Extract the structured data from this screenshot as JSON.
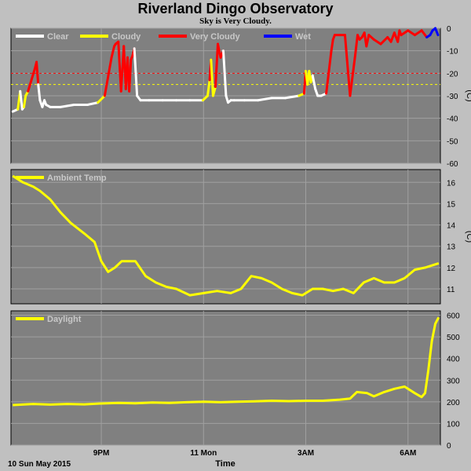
{
  "title": "Riverland Dingo Observatory",
  "subtitle": "Sky is Very Cloudy.",
  "colors": {
    "clear": "#ffffff",
    "cloudy": "#ffff00",
    "very_cloudy": "#ff0000",
    "wet": "#0000ff",
    "panel": "#808080",
    "grid": "#a0a0a0"
  },
  "x_axis": {
    "label": "Time",
    "date_label": "10 Sun May 2015",
    "range_hours": [
      18.35,
      30.95
    ],
    "ticks": [
      {
        "hour": 21,
        "label": "9PM"
      },
      {
        "hour": 24,
        "label": "11 Mon"
      },
      {
        "hour": 27,
        "label": "3AM"
      },
      {
        "hour": 30,
        "label": "6AM"
      }
    ]
  },
  "chart_data": [
    {
      "type": "line",
      "name": "sky",
      "legend": [
        {
          "label": "Clear",
          "color": "#ffffff"
        },
        {
          "label": "Cloudy",
          "color": "#ffff00"
        },
        {
          "label": "Very Cloudy",
          "color": "#ff0000"
        },
        {
          "label": "Wet",
          "color": "#0000ff"
        }
      ],
      "ylim": [
        -60,
        0
      ],
      "yticks": [
        0,
        -10,
        -20,
        -30,
        -40,
        -50,
        -60
      ],
      "unit": "(C)",
      "thresholds": [
        {
          "value": -20,
          "color": "#ff0000"
        },
        {
          "value": -25,
          "color": "#ffff00"
        }
      ],
      "x": [
        18.4,
        18.55,
        18.62,
        18.68,
        18.73,
        18.78,
        18.85,
        18.95,
        19.05,
        19.1,
        19.15,
        19.2,
        19.27,
        19.33,
        19.38,
        19.5,
        19.8,
        20.2,
        20.6,
        20.9,
        21.1,
        21.3,
        21.38,
        21.42,
        21.5,
        21.58,
        21.66,
        21.72,
        21.77,
        21.82,
        21.87,
        21.92,
        21.97,
        22.05,
        22.15,
        22.4,
        22.8,
        23.2,
        23.6,
        23.98,
        24.12,
        24.18,
        24.22,
        24.28,
        24.35,
        24.42,
        24.5,
        24.58,
        24.66,
        24.72,
        24.8,
        24.9,
        25.2,
        25.6,
        26.0,
        26.4,
        26.8,
        26.95,
        27.0,
        27.05,
        27.1,
        27.15,
        27.2,
        27.28,
        27.35,
        27.45,
        27.6,
        27.75,
        27.8,
        27.85,
        28.0,
        28.15,
        28.3,
        28.45,
        28.52,
        28.58,
        28.65,
        28.72,
        28.78,
        28.85,
        29.0,
        29.2,
        29.4,
        29.5,
        29.6,
        29.7,
        29.75,
        29.8,
        29.9,
        30.0,
        30.2,
        30.4,
        30.55,
        30.65,
        30.72,
        30.8,
        30.88
      ],
      "y": [
        -37,
        -36,
        -28,
        -36,
        -35,
        -30,
        -28,
        -23,
        -18,
        -15,
        -25,
        -32,
        -35,
        -32,
        -34,
        -35,
        -35,
        -34,
        -34,
        -33,
        -30,
        -13,
        -8,
        -7,
        -6,
        -28,
        -8,
        -27,
        -13,
        -28,
        -14,
        -12,
        -9,
        -30,
        -32,
        -32,
        -32,
        -32,
        -32,
        -32,
        -30,
        -23,
        -14,
        -30,
        -26,
        -7,
        -13,
        -10,
        -30,
        -33,
        -32,
        -32,
        -32,
        -32,
        -31,
        -31,
        -30,
        -29,
        -19,
        -25,
        -19,
        -24,
        -21,
        -27,
        -30,
        -30,
        -29,
        -10,
        -5,
        -3,
        -3,
        -3,
        -30,
        -12,
        -3,
        -5,
        -4,
        -2,
        -8,
        -3,
        -5,
        -7,
        -4,
        -6,
        -2,
        -6,
        -1,
        -3,
        -2,
        -1,
        -3,
        -1,
        -4,
        -3,
        -1,
        0,
        -3
      ],
      "s": [
        "c",
        "c",
        "y",
        "c",
        "c",
        "y",
        "y",
        "r",
        "r",
        "r",
        "r",
        "c",
        "c",
        "c",
        "c",
        "c",
        "c",
        "c",
        "c",
        "c",
        "y",
        "r",
        "r",
        "r",
        "r",
        "r",
        "r",
        "r",
        "r",
        "r",
        "r",
        "r",
        "r",
        "c",
        "c",
        "c",
        "c",
        "c",
        "c",
        "c",
        "y",
        "y",
        "r",
        "y",
        "y",
        "r",
        "r",
        "r",
        "c",
        "c",
        "c",
        "c",
        "c",
        "c",
        "c",
        "c",
        "c",
        "y",
        "r",
        "y",
        "y",
        "y",
        "y",
        "c",
        "c",
        "c",
        "c",
        "r",
        "r",
        "r",
        "r",
        "r",
        "r",
        "r",
        "r",
        "r",
        "r",
        "r",
        "r",
        "r",
        "r",
        "r",
        "r",
        "r",
        "r",
        "r",
        "r",
        "r",
        "r",
        "r",
        "r",
        "r",
        "r",
        "w",
        "w",
        "w",
        "w"
      ]
    },
    {
      "type": "line",
      "name": "ambient",
      "legend": [
        {
          "label": "Ambient Temp",
          "color": "#ffff00"
        }
      ],
      "ylim": [
        10.3,
        16.6
      ],
      "yticks": [
        16,
        15,
        14,
        13,
        12,
        11
      ],
      "unit": "(C)",
      "x": [
        18.4,
        18.7,
        19.0,
        19.2,
        19.5,
        19.8,
        20.1,
        20.5,
        20.8,
        21.0,
        21.2,
        21.4,
        21.6,
        21.8,
        22.0,
        22.3,
        22.6,
        22.9,
        23.2,
        23.6,
        24.0,
        24.4,
        24.8,
        25.1,
        25.4,
        25.7,
        26.0,
        26.3,
        26.6,
        26.9,
        27.2,
        27.5,
        27.8,
        28.1,
        28.4,
        28.7,
        29.0,
        29.3,
        29.6,
        29.9,
        30.2,
        30.5,
        30.9
      ],
      "y": [
        16.3,
        16.0,
        15.8,
        15.6,
        15.2,
        14.6,
        14.1,
        13.6,
        13.2,
        12.3,
        11.8,
        12.0,
        12.3,
        12.3,
        12.3,
        11.6,
        11.3,
        11.1,
        11.0,
        10.7,
        10.8,
        10.9,
        10.8,
        11.0,
        11.6,
        11.5,
        11.3,
        11.0,
        10.8,
        10.7,
        11.0,
        11.0,
        10.9,
        11.0,
        10.8,
        11.3,
        11.5,
        11.3,
        11.3,
        11.5,
        11.9,
        12.0,
        12.2
      ]
    },
    {
      "type": "line",
      "name": "daylight",
      "legend": [
        {
          "label": "Daylight",
          "color": "#ffff00"
        }
      ],
      "ylim": [
        0,
        620
      ],
      "yticks": [
        600,
        500,
        400,
        300,
        200,
        100,
        0
      ],
      "unit": "",
      "x": [
        18.4,
        19.0,
        19.5,
        20.0,
        20.5,
        21.0,
        21.5,
        22.0,
        22.5,
        23.0,
        23.5,
        24.0,
        24.5,
        25.0,
        25.5,
        26.0,
        26.5,
        27.0,
        27.5,
        28.0,
        28.3,
        28.5,
        28.8,
        29.0,
        29.3,
        29.6,
        29.9,
        30.2,
        30.4,
        30.5,
        30.6,
        30.7,
        30.8,
        30.9
      ],
      "y": [
        185,
        190,
        187,
        190,
        188,
        192,
        195,
        193,
        197,
        195,
        198,
        200,
        198,
        200,
        202,
        205,
        203,
        205,
        205,
        210,
        215,
        245,
        240,
        225,
        245,
        260,
        270,
        240,
        222,
        240,
        350,
        480,
        560,
        590
      ]
    }
  ]
}
